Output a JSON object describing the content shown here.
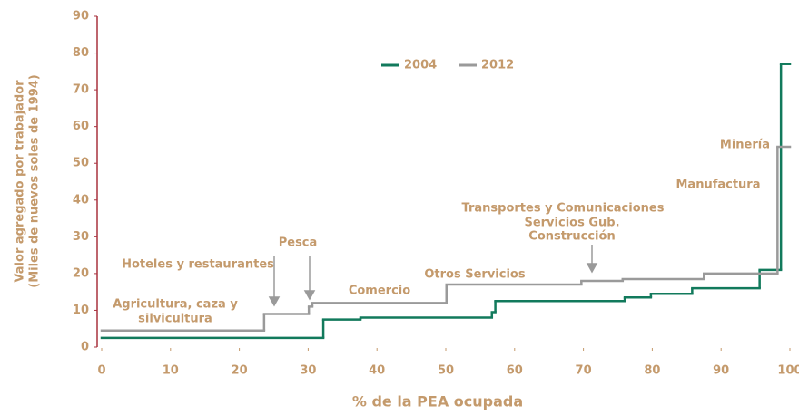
{
  "chart_data": {
    "type": "step",
    "xlabel": "% de la PEA ocupada",
    "ylabel": [
      "Valor agregado por trabajador",
      "(Miles de nuevos soles de 1994)"
    ],
    "xlim": [
      0,
      100
    ],
    "xticks": [
      0,
      10,
      20,
      30,
      40,
      50,
      60,
      70,
      80,
      90,
      100
    ],
    "ylim": [
      0,
      90
    ],
    "yticks": [
      0,
      10,
      20,
      30,
      40,
      50,
      60,
      70,
      80,
      90
    ],
    "grid": false,
    "legend": "top",
    "series": [
      {
        "name": "2004",
        "color": "#127a5c",
        "x": [
          0,
          32.2,
          37.6,
          56.7,
          57.2,
          76,
          79.8,
          85.8,
          95.6,
          98.7
        ],
        "values": [
          2.5,
          7.5,
          8,
          9.5,
          12.5,
          13.5,
          14.5,
          16,
          21,
          77
        ]
      },
      {
        "name": "2012",
        "color": "#9a9a9a",
        "x": [
          0,
          23.6,
          30.1,
          30.6,
          50.1,
          69.7,
          75.7,
          87.5,
          98.2
        ],
        "values": [
          4.5,
          9,
          11,
          12,
          17,
          18,
          18.5,
          20,
          54.5
        ]
      }
    ],
    "annotations": [
      "Agricultura, caza y",
      "silvicultura",
      "Hoteles y restaurantes",
      "Pesca",
      "Comercio",
      "Otros Servicios",
      "Transportes y Comunicaciones",
      "Servicios Gub.",
      "Construcción",
      "Manufactura",
      "Minería"
    ]
  }
}
